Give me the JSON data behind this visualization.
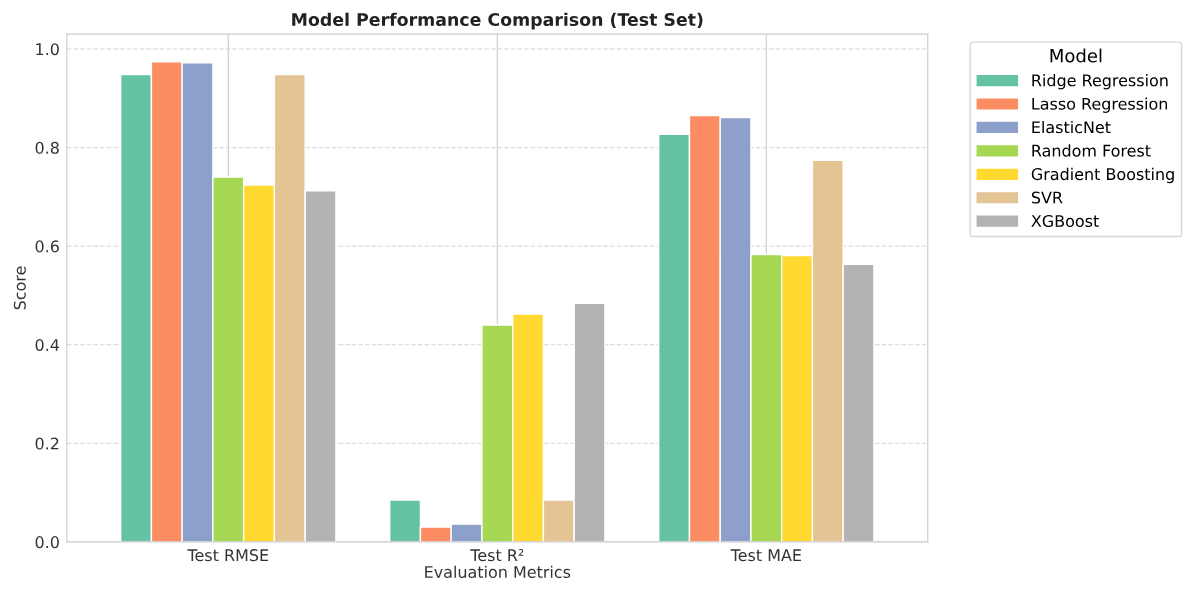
{
  "chart_data": {
    "type": "bar",
    "title": "Model Performance Comparison (Test Set)",
    "xlabel": "Evaluation Metrics",
    "ylabel": "Score",
    "legend_title": "Model",
    "categories": [
      "Test RMSE",
      "Test R²",
      "Test MAE"
    ],
    "series": [
      {
        "name": "Ridge Regression",
        "color": "#66c2a5",
        "values": [
          0.948,
          0.085,
          0.827
        ]
      },
      {
        "name": "Lasso Regression",
        "color": "#fc8d62",
        "values": [
          0.974,
          0.03,
          0.865
        ]
      },
      {
        "name": "ElasticNet",
        "color": "#8da0cb",
        "values": [
          0.972,
          0.036,
          0.861
        ]
      },
      {
        "name": "Random Forest",
        "color": "#a6d854",
        "values": [
          0.74,
          0.44,
          0.583
        ]
      },
      {
        "name": "Gradient Boosting",
        "color": "#ffd92f",
        "values": [
          0.724,
          0.462,
          0.581
        ]
      },
      {
        "name": "SVR",
        "color": "#e5c494",
        "values": [
          0.948,
          0.085,
          0.774
        ]
      },
      {
        "name": "XGBoost",
        "color": "#b3b3b3",
        "values": [
          0.712,
          0.484,
          0.563
        ]
      }
    ],
    "ylim": [
      0,
      1.03
    ],
    "yticks": [
      {
        "value": 0,
        "label": "0.0"
      },
      0.2,
      0.4,
      0.6,
      0.8,
      {
        "value": 1,
        "label": "1.0"
      }
    ],
    "grid": true,
    "legend": "top right"
  }
}
